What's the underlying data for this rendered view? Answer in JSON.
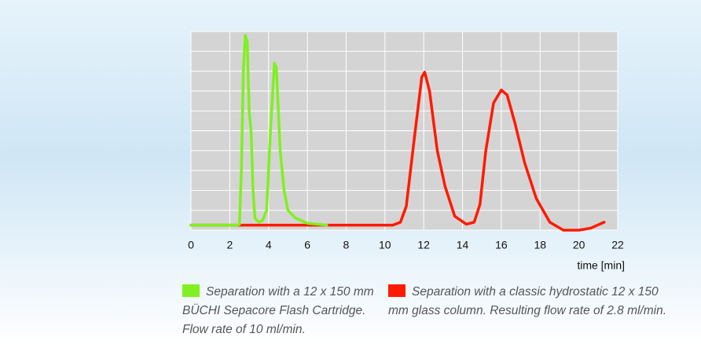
{
  "chart_data": {
    "type": "line",
    "x_label": "time [min]",
    "xlim": [
      0,
      22
    ],
    "xticks": [
      0,
      2,
      4,
      6,
      8,
      10,
      12,
      14,
      16,
      18,
      20,
      22
    ],
    "ylim": [
      0,
      10
    ],
    "yticks": [
      0,
      1,
      2,
      3,
      4,
      5,
      6,
      7,
      8,
      9,
      10
    ],
    "grid": true,
    "series": [
      {
        "name": "Separation with a 12 x 150 mm BÜCHI Sepacore Flash Cartridge. Flow rate of 10 ml/min.",
        "color": "#80f020",
        "x": [
          0,
          2.4,
          2.5,
          2.6,
          2.7,
          2.8,
          2.9,
          3.0,
          3.1,
          3.2,
          3.3,
          3.5,
          3.7,
          3.9,
          4.1,
          4.3,
          4.4,
          4.6,
          4.8,
          5.0,
          5.4,
          6,
          7
        ],
        "values": [
          0.25,
          0.25,
          0.3,
          3,
          8,
          9.8,
          9.5,
          6,
          5,
          2,
          0.6,
          0.4,
          0.5,
          1,
          5,
          8.4,
          8.2,
          4,
          2,
          1,
          0.6,
          0.35,
          0.25
        ]
      },
      {
        "name": "Separation with a classic hydrostatic 12 x 150 mm glass column. Resulting flow rate of 2.8 ml/min.",
        "color": "#ff1a00",
        "x": [
          0,
          10.4,
          10.8,
          11.1,
          11.5,
          11.9,
          12.05,
          12.3,
          12.7,
          13.1,
          13.6,
          14.2,
          14.6,
          14.9,
          15.2,
          15.6,
          16.0,
          16.3,
          16.7,
          17.2,
          17.8,
          18.5,
          19.2,
          20,
          20.6,
          21.3
        ],
        "values": [
          0.25,
          0.25,
          0.4,
          1.2,
          4.5,
          7.7,
          7.95,
          7,
          4,
          2.2,
          0.7,
          0.3,
          0.4,
          1.3,
          4,
          6.4,
          7.05,
          6.8,
          5.4,
          3.4,
          1.6,
          0.4,
          0,
          0,
          0.1,
          0.4
        ]
      }
    ]
  }
}
